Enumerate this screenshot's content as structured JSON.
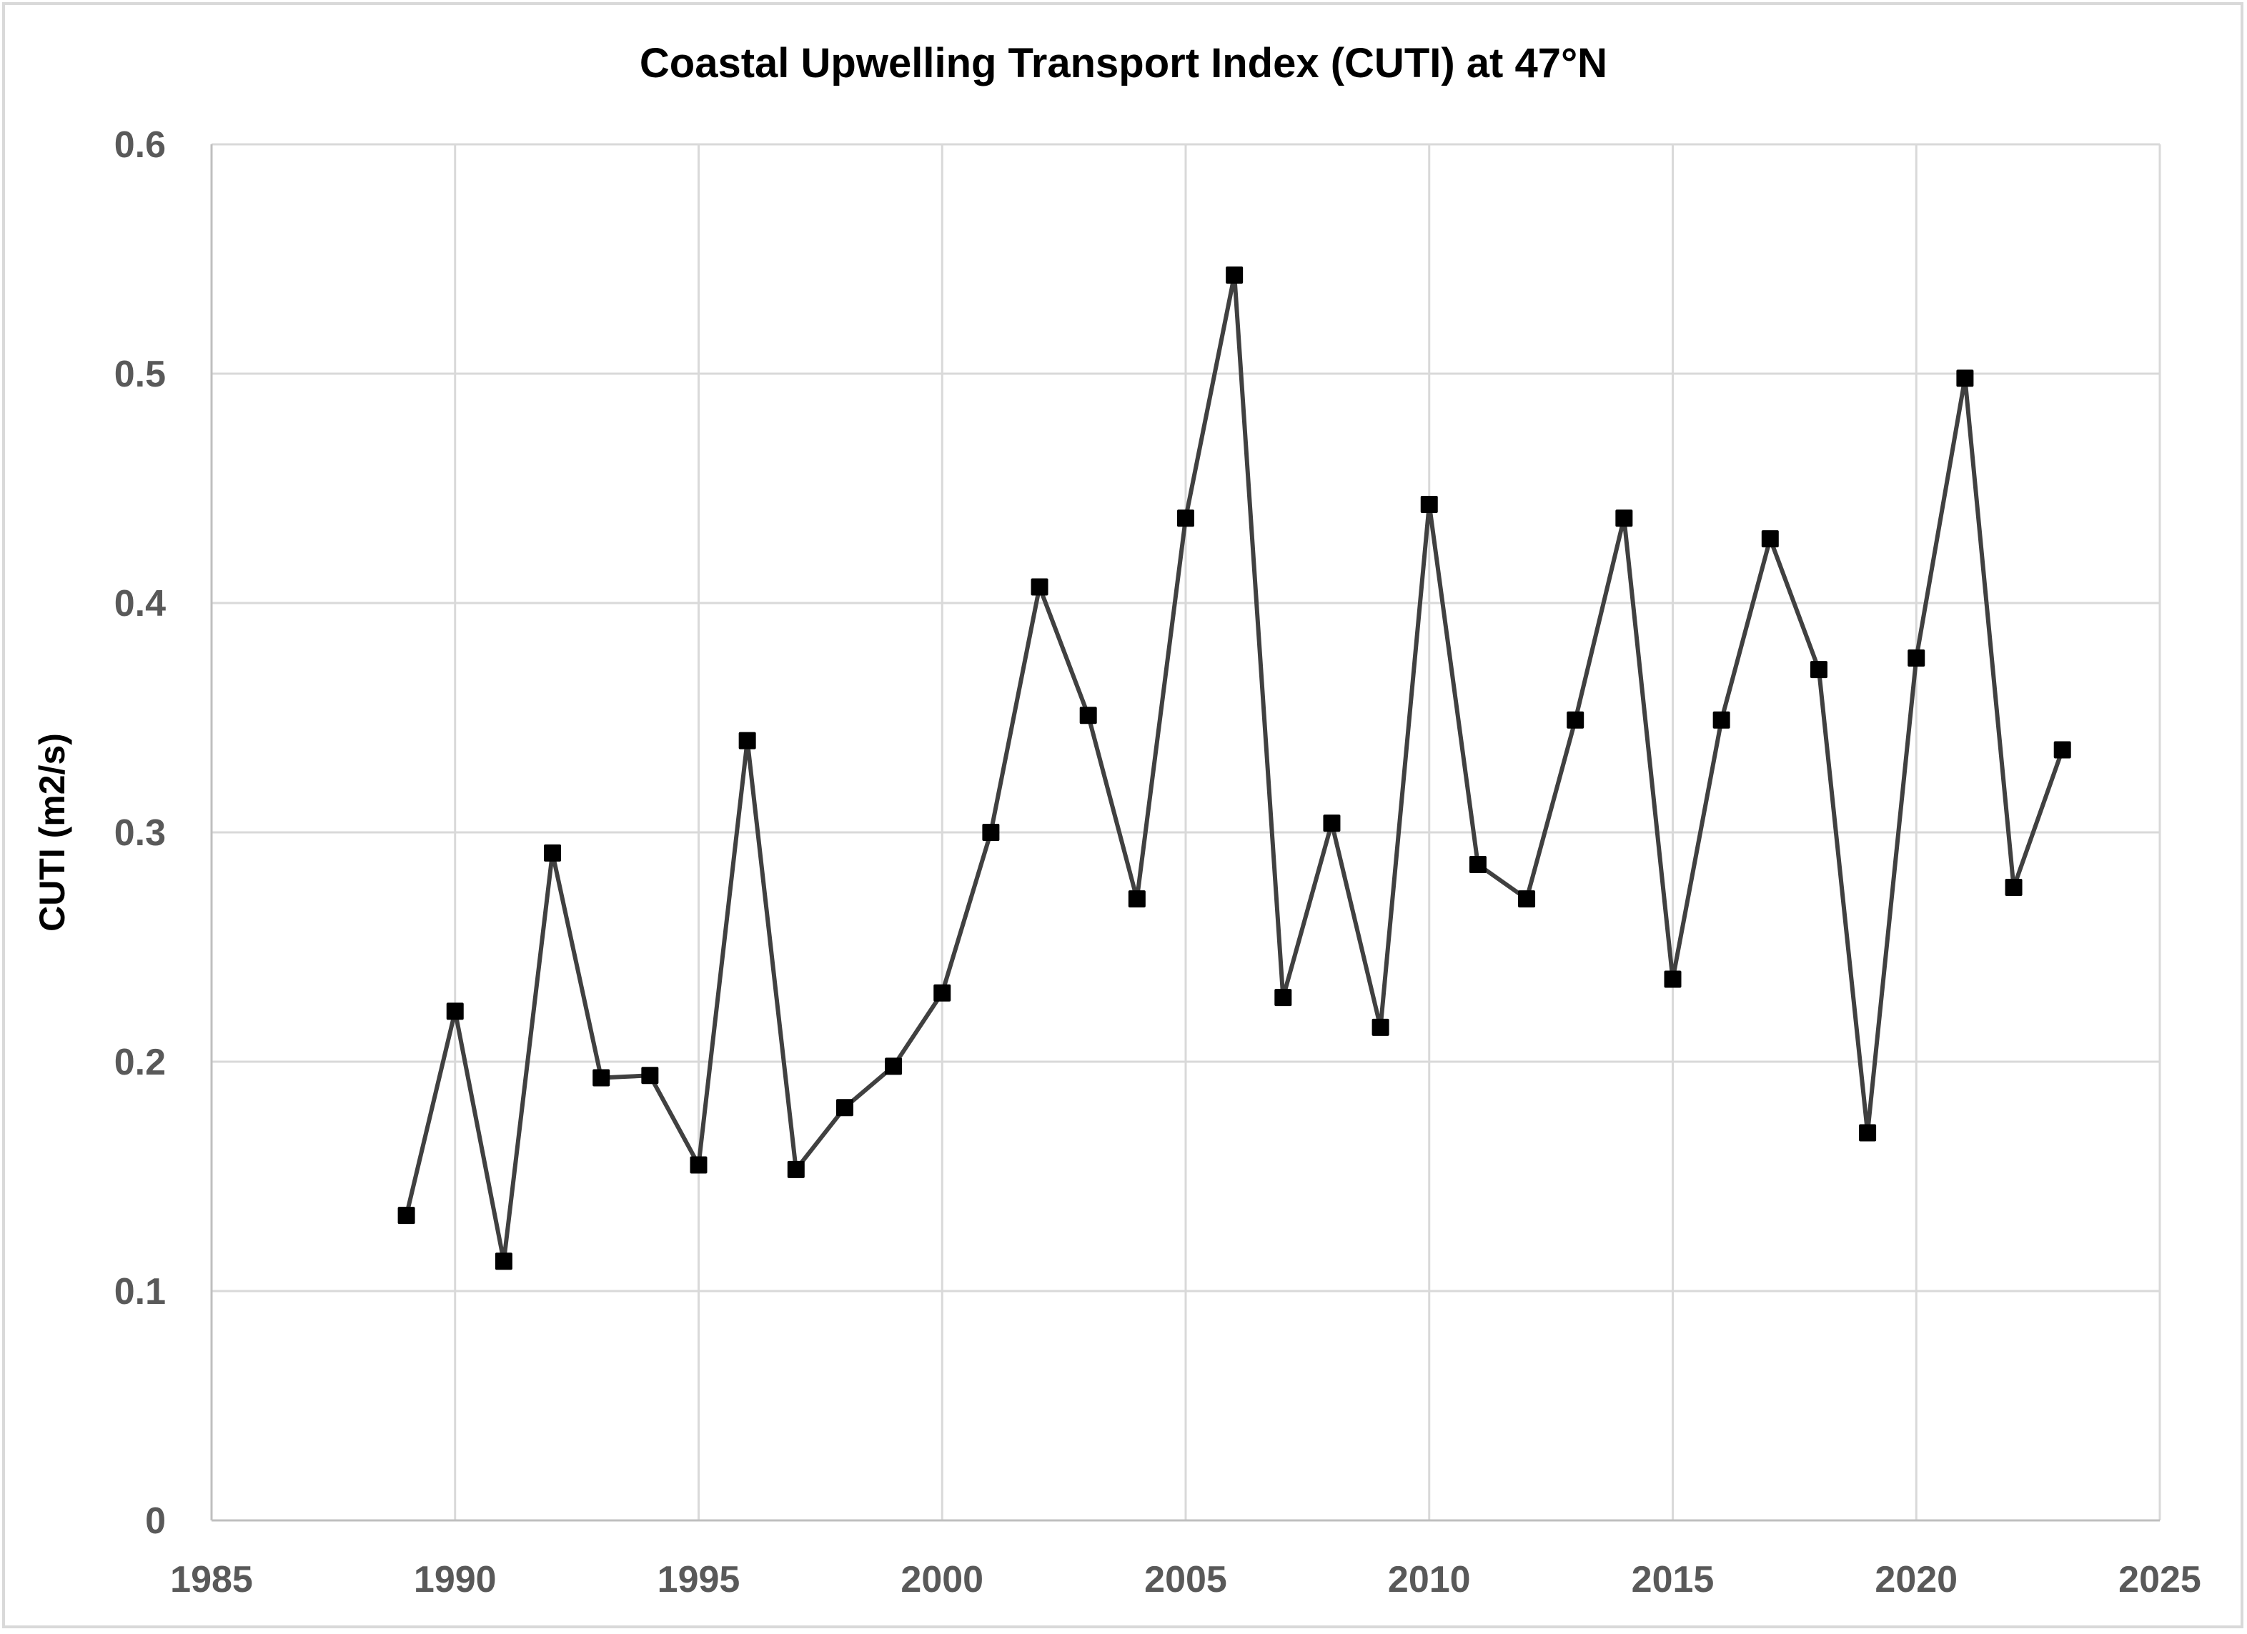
{
  "chart_data": {
    "type": "line",
    "title": "Coastal Upwelling Transport Index (CUTI) at 47°N",
    "xlabel": "",
    "ylabel": "CUTI (m2/s)",
    "xlim": [
      1985,
      2025
    ],
    "ylim": [
      0,
      0.6
    ],
    "x_ticks": [
      1985,
      1990,
      1995,
      2000,
      2005,
      2010,
      2015,
      2020,
      2025
    ],
    "x_tick_labels": [
      "1985",
      "1990",
      "1995",
      "2000",
      "2005",
      "2010",
      "2015",
      "2020",
      "2025"
    ],
    "y_ticks": [
      0,
      0.1,
      0.2,
      0.3,
      0.4,
      0.5,
      0.6
    ],
    "y_tick_labels": [
      "0",
      "0.1",
      "0.2",
      "0.3",
      "0.4",
      "0.5",
      "0.6"
    ],
    "grid": true,
    "legend": "none",
    "series": [
      {
        "name": "CUTI",
        "marker": "square",
        "line_color": "#404040",
        "marker_color": "#000000",
        "x": [
          1989,
          1990,
          1991,
          1992,
          1993,
          1994,
          1995,
          1996,
          1997,
          1998,
          1999,
          2000,
          2001,
          2002,
          2003,
          2004,
          2005,
          2006,
          2007,
          2008,
          2009,
          2010,
          2011,
          2012,
          2013,
          2014,
          2015,
          2016,
          2017,
          2018,
          2019,
          2020,
          2021,
          2022,
          2023
        ],
        "values": [
          0.133,
          0.222,
          0.113,
          0.291,
          0.193,
          0.194,
          0.155,
          0.34,
          0.153,
          0.18,
          0.198,
          0.23,
          0.3,
          0.407,
          0.351,
          0.271,
          0.437,
          0.543,
          0.228,
          0.304,
          0.215,
          0.443,
          0.286,
          0.271,
          0.349,
          0.437,
          0.236,
          0.349,
          0.428,
          0.371,
          0.169,
          0.376,
          0.498,
          0.276,
          0.336
        ]
      }
    ]
  },
  "colors": {
    "gridline": "#d9d9d9",
    "border": "#d9d9d9",
    "tick_text": "#595959",
    "title_text": "#000000"
  }
}
